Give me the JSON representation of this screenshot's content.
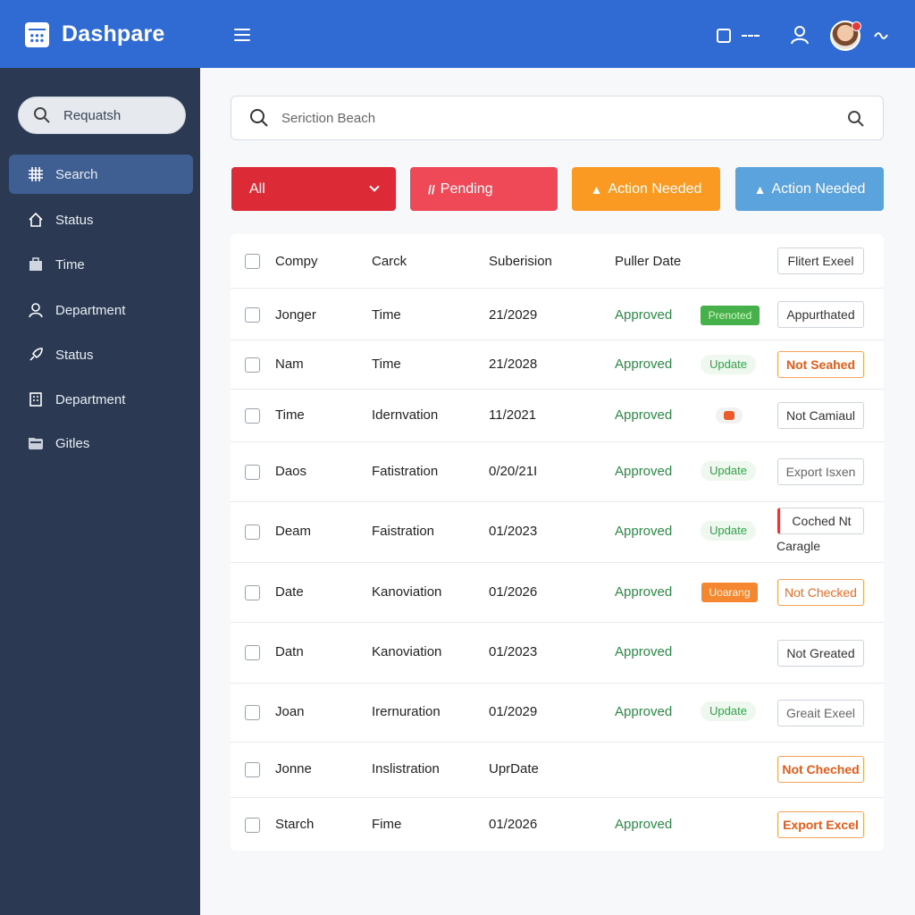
{
  "header": {
    "title": "Dashpare",
    "icons": [
      "calendar-icon",
      "menu-icon",
      "window-icon",
      "more-icon",
      "user-icon",
      "avatar",
      "notification-dot",
      "wave-icon"
    ]
  },
  "sidebar": {
    "search_label": "Requatsh",
    "items": [
      {
        "label": "Search",
        "icon": "grid-icon",
        "active": true
      },
      {
        "label": "Status",
        "icon": "home-icon"
      },
      {
        "label": "Time",
        "icon": "briefcase-icon"
      },
      {
        "label": "Department",
        "icon": "user-icon"
      },
      {
        "label": "Status",
        "icon": "rocket-icon"
      },
      {
        "label": "Department",
        "icon": "building-icon"
      },
      {
        "label": "Gitles",
        "icon": "folder-icon"
      }
    ]
  },
  "search": {
    "placeholder": "Seriction Beach"
  },
  "filters": {
    "all": "All",
    "pending": "Pending",
    "pending_prefix": "//",
    "action1": "Action Needed",
    "action2": "Action Needed",
    "warning_glyph": "▲"
  },
  "table": {
    "headers": {
      "col1": "Compy",
      "col2": "Carck",
      "col3": "Suberision",
      "col4": "Puller Date",
      "action": "Flitert Exeel"
    },
    "rows": [
      {
        "name": "Jonger",
        "type": "Time",
        "date": "21/2029",
        "status": "Approved",
        "badge": "Prenoted",
        "action": "Appurthated"
      },
      {
        "name": "Nam",
        "type": "Time",
        "date": "21/2028",
        "status": "Approved",
        "badge": "Update",
        "action": "Not Seahed"
      },
      {
        "name": "Time",
        "type": "Idernvation",
        "date": "11/2021",
        "status": "Approved",
        "badge": "",
        "action": "Not Camiaul"
      },
      {
        "name": "Daos",
        "type": "Fatistration",
        "date": "0/20/21I",
        "status": "Approved",
        "badge": "Update",
        "action": "Export Isxen"
      },
      {
        "name": "Deam",
        "type": "Faistration",
        "date": "01/2023",
        "status": "Approved",
        "badge": "Update",
        "action": "Coched Nt",
        "sub": "Caragle"
      },
      {
        "name": "Date",
        "type": "Kanoviation",
        "date": "01/2026",
        "status": "Approved",
        "badge": "Uoarang",
        "action": "Not Checked"
      },
      {
        "name": "Datn",
        "type": "Kanoviation",
        "date": "01/2023",
        "status": "Approved",
        "badge": "",
        "action": "Not Greated"
      },
      {
        "name": "Joan",
        "type": "Irernuration",
        "date": "01/2029",
        "status": "Approved",
        "badge": "Update",
        "action": "Greait Exeel"
      },
      {
        "name": "Jonne",
        "type": "Inslistration",
        "date": "UprDate",
        "status": "",
        "badge": "",
        "action": "Not Cheched"
      },
      {
        "name": "Starch",
        "type": "Fime",
        "date": "01/2026",
        "status": "Approved",
        "badge": "",
        "action": "Export Excel"
      }
    ]
  },
  "colors": {
    "header": "#2f6bd3",
    "sidebar": "#2b3a52",
    "red": "#dc2b36",
    "orange": "#fb9a22",
    "blue": "#5aa3dc",
    "approved": "#2a8a45"
  }
}
